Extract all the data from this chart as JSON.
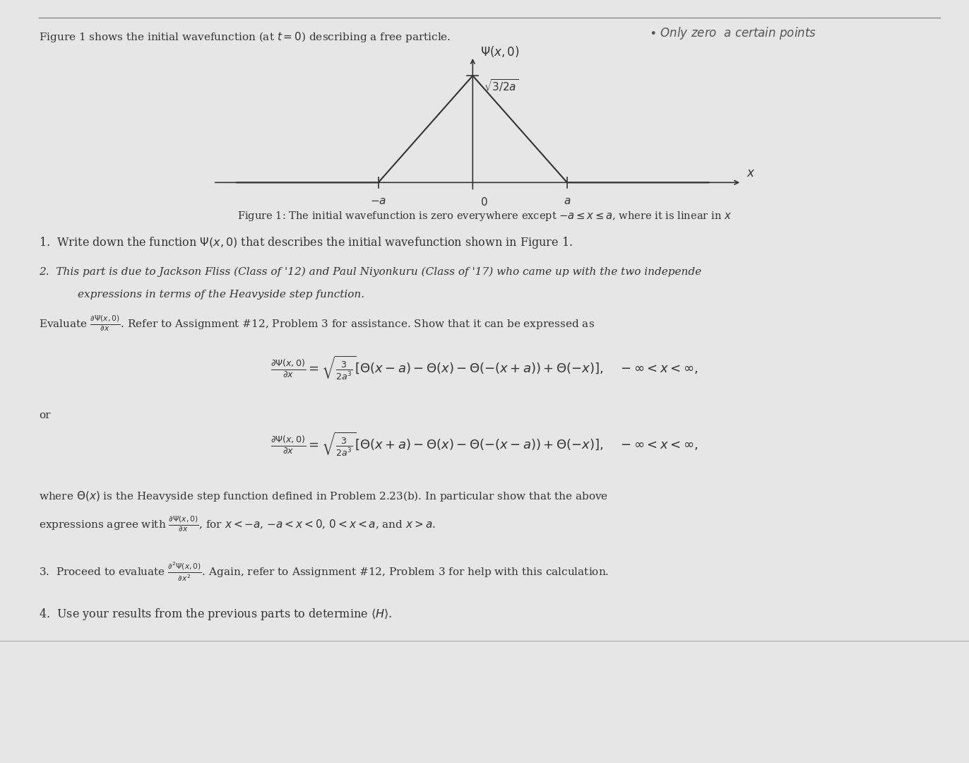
{
  "bg_color": "#e6e6e6",
  "dark_col": "#333333",
  "fig_width": 13.72,
  "fig_height": 10.8,
  "header_text": "Figure 1 shows the initial wavefunction (at $t = 0$) describing a free particle.",
  "header_note": "Only zero  a certain points",
  "figure_caption": "Figure 1: The initial wavefunction is zero everywhere except $-a \\leq x \\leq a$, where it is linear in $x$"
}
